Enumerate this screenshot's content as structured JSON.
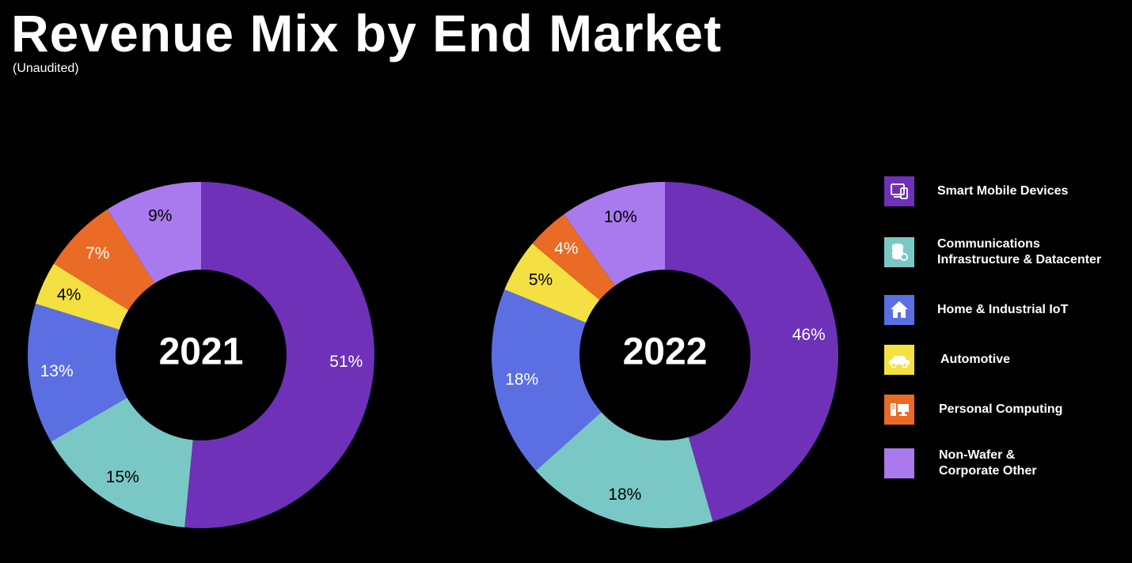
{
  "header": {
    "title": "Revenue Mix by End Market",
    "subtitle": "(Unaudited)"
  },
  "chart_data": [
    {
      "type": "pie",
      "center_label": "2021",
      "categories": [
        "Smart Mobile Devices",
        "Communications Infrastructure & Datacenter",
        "Home & Industrial IoT",
        "Automotive",
        "Personal Computing",
        "Non-Wafer & Corporate Other"
      ],
      "values": [
        51,
        15,
        13,
        4,
        7,
        9
      ],
      "labels": [
        "51%",
        "15%",
        "13%",
        "4%",
        "7%",
        "9%"
      ]
    },
    {
      "type": "pie",
      "center_label": "2022",
      "categories": [
        "Smart Mobile Devices",
        "Communications Infrastructure & Datacenter",
        "Home & Industrial IoT",
        "Automotive",
        "Personal Computing",
        "Non-Wafer & Corporate Other"
      ],
      "values": [
        46,
        18,
        18,
        5,
        4,
        10
      ],
      "labels": [
        "46%",
        "18%",
        "18%",
        "5%",
        "4%",
        "10%"
      ]
    }
  ],
  "legend": {
    "items": [
      {
        "label": "Smart Mobile Devices",
        "color": "#6f31b7",
        "icon": "mobile-devices-icon"
      },
      {
        "label": "Communications\nInfrastructure & Datacenter",
        "color": "#7ac8c5",
        "icon": "datacenter-icon"
      },
      {
        "label": "Home & Industrial IoT",
        "color": "#5b6fe3",
        "icon": "home-icon"
      },
      {
        "label": "Automotive",
        "color": "#f5e042",
        "icon": "car-icon"
      },
      {
        "label": "Personal Computing",
        "color": "#e96b25",
        "icon": "desktop-computer-icon"
      },
      {
        "label": "Non-Wafer &\nCorporate Other",
        "color": "#a87aee",
        "icon": ""
      }
    ]
  },
  "colors": {
    "background": "#000000",
    "segments": [
      "#6f31b7",
      "#7ac8c5",
      "#5b6fe3",
      "#f5e042",
      "#e96b25",
      "#a87aee"
    ],
    "label_dark_segments": [
      false,
      true,
      false,
      true,
      false,
      true
    ]
  }
}
